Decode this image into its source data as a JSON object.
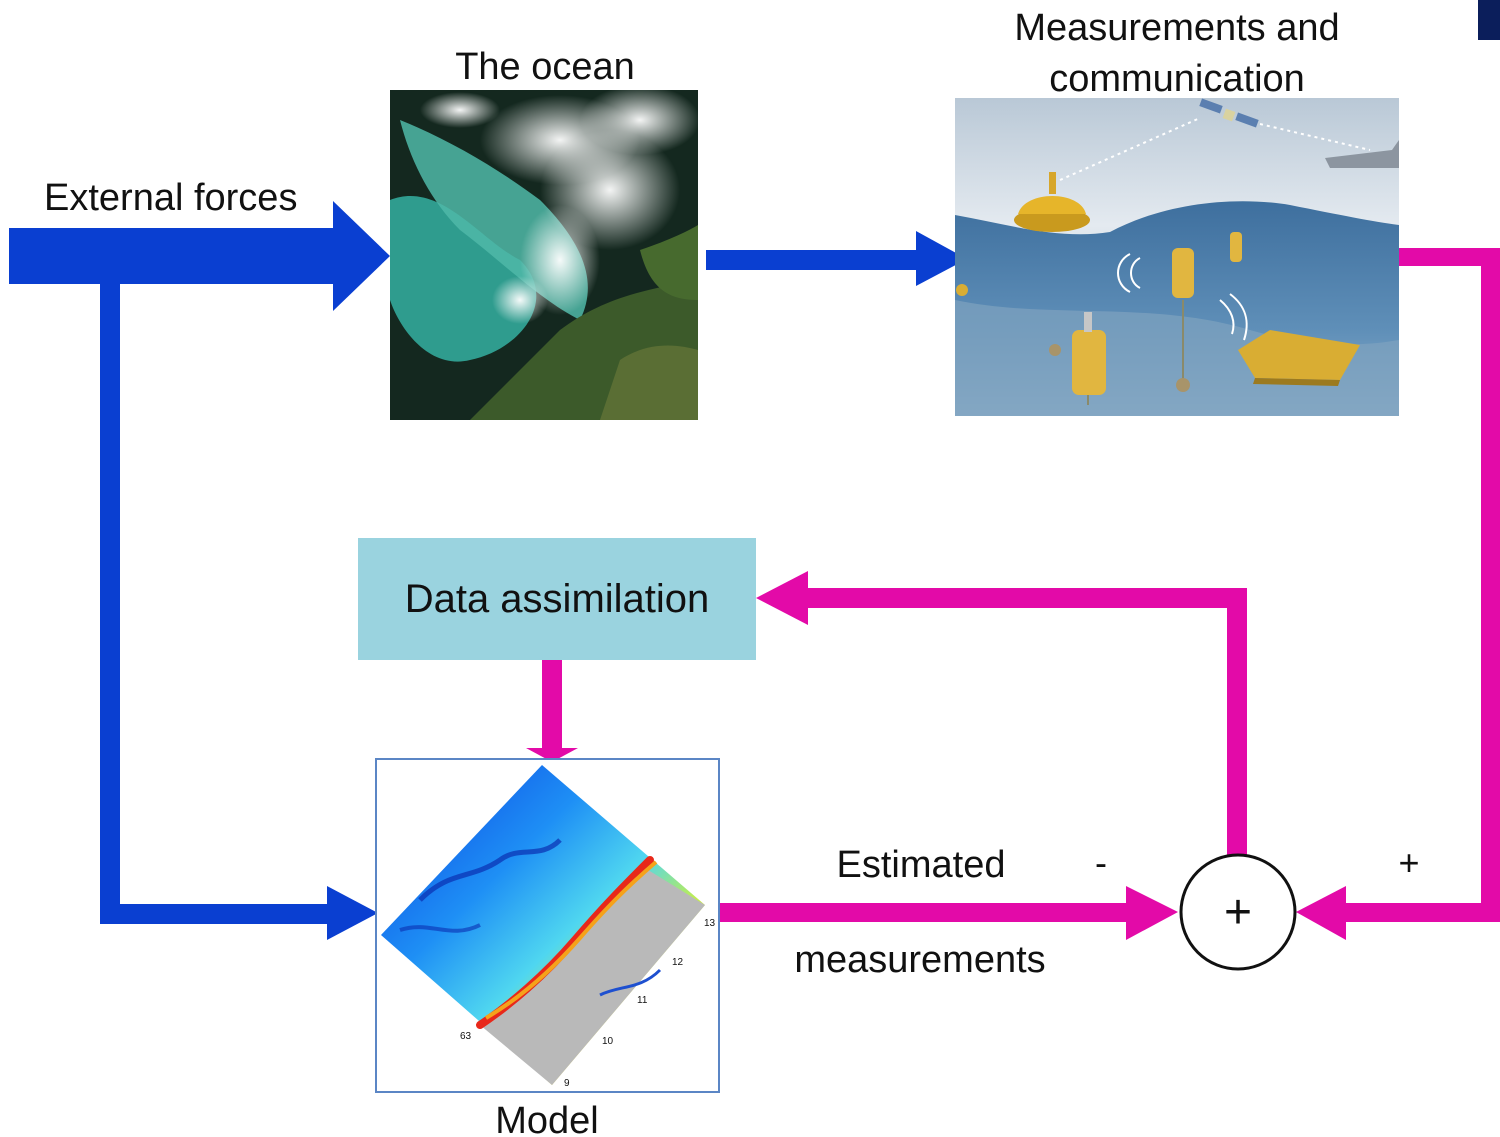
{
  "labels": {
    "external_forces": "External forces",
    "the_ocean": "The ocean",
    "measurements_line1": "Measurements and",
    "measurements_line2": "communication",
    "data_assimilation": "Data assimilation",
    "estimated": "Estimated",
    "measurements": "measurements",
    "minus": "-",
    "plus": "+",
    "sum_symbol": "+",
    "model": "Model"
  },
  "model_map_ticks": {
    "lon_13": "13",
    "lon_12": "12",
    "lon_11": "11",
    "lon_10": "10",
    "lon_9": "9",
    "lat_63": "63"
  },
  "colors": {
    "forcing_arrow": "#0a3fd1",
    "feedback_arrow": "#e30aa8",
    "assimilation_box": "#9ad3df",
    "corner_mark": "#0b1e5b"
  },
  "images": {
    "ocean": "satellite-ocean-image",
    "measurements": "ocean-observing-system-illustration",
    "model": "ocean-model-map"
  }
}
